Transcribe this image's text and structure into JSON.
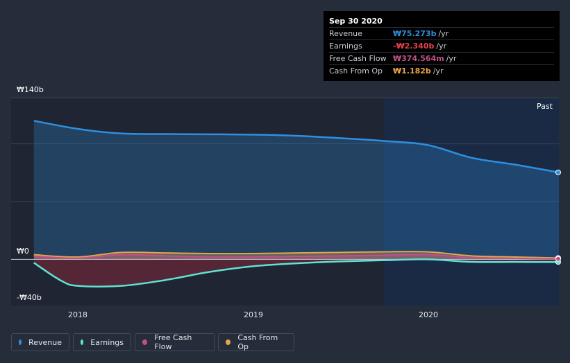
{
  "tooltip": {
    "date": "Sep 30 2020",
    "rows": [
      {
        "label": "Revenue",
        "value": "₩75.273b",
        "unit": "/yr",
        "color": "#2e8fe0"
      },
      {
        "label": "Earnings",
        "value": "-₩2.340b",
        "unit": "/yr",
        "color": "#e8414b"
      },
      {
        "label": "Free Cash Flow",
        "value": "₩374.564m",
        "unit": "/yr",
        "color": "#c1508a"
      },
      {
        "label": "Cash From Op",
        "value": "₩1.182b",
        "unit": "/yr",
        "color": "#e8a44a"
      }
    ]
  },
  "past_label": "Past",
  "legend": [
    {
      "label": "Revenue",
      "color": "#2e8fe0"
    },
    {
      "label": "Earnings",
      "color": "#5fe3d2"
    },
    {
      "label": "Free Cash Flow",
      "color": "#c1508a"
    },
    {
      "label": "Cash From Op",
      "color": "#e8a44a"
    }
  ],
  "chart_data": {
    "type": "line",
    "y_tick_labels": [
      "₩140b",
      "₩0",
      "-₩40b"
    ],
    "x_tick_labels": [
      "2018",
      "2019",
      "2020"
    ],
    "x_ticks": [
      2018.0,
      2019.0,
      2020.0
    ],
    "xlim": [
      2017.62,
      2020.75
    ],
    "ylim": [
      -40,
      140
    ],
    "past_start": 2019.75,
    "series": [
      {
        "name": "Revenue",
        "color": "#2e8fe0",
        "x": [
          2017.75,
          2018.0,
          2018.25,
          2018.5,
          2018.75,
          2019.0,
          2019.25,
          2019.5,
          2019.75,
          2020.0,
          2020.25,
          2020.5,
          2020.75
        ],
        "values": [
          120,
          113,
          109,
          108.5,
          108.3,
          108,
          107,
          105,
          102.5,
          99,
          88,
          82,
          75.3
        ]
      },
      {
        "name": "Earnings",
        "color": "#5fe3d2",
        "x": [
          2017.75,
          2017.9,
          2018.0,
          2018.25,
          2018.5,
          2018.75,
          2019.0,
          2019.25,
          2019.5,
          2019.75,
          2020.0,
          2020.25,
          2020.5,
          2020.75
        ],
        "values": [
          -3,
          -18,
          -23,
          -23,
          -18,
          -11,
          -6,
          -3.5,
          -1.8,
          -0.8,
          0,
          -2.2,
          -2.3,
          -2.34
        ]
      },
      {
        "name": "Free Cash Flow",
        "color": "#c1508a",
        "x": [
          2017.75,
          2018.0,
          2018.25,
          2018.5,
          2018.75,
          2019.0,
          2019.25,
          2019.5,
          2019.75,
          2020.0,
          2020.25,
          2020.5,
          2020.75
        ],
        "values": [
          2.5,
          1.0,
          4.0,
          3.0,
          2.0,
          2.0,
          2.5,
          3.0,
          3.5,
          4.0,
          1.5,
          0.8,
          0.37
        ]
      },
      {
        "name": "Cash From Op",
        "color": "#e8a44a",
        "x": [
          2017.75,
          2018.0,
          2018.25,
          2018.5,
          2018.75,
          2019.0,
          2019.25,
          2019.5,
          2019.75,
          2020.0,
          2020.25,
          2020.5,
          2020.75
        ],
        "values": [
          4.0,
          2.0,
          6.0,
          5.5,
          5.0,
          5.0,
          5.5,
          6.0,
          6.5,
          6.5,
          3.0,
          2.0,
          1.18
        ]
      }
    ]
  }
}
